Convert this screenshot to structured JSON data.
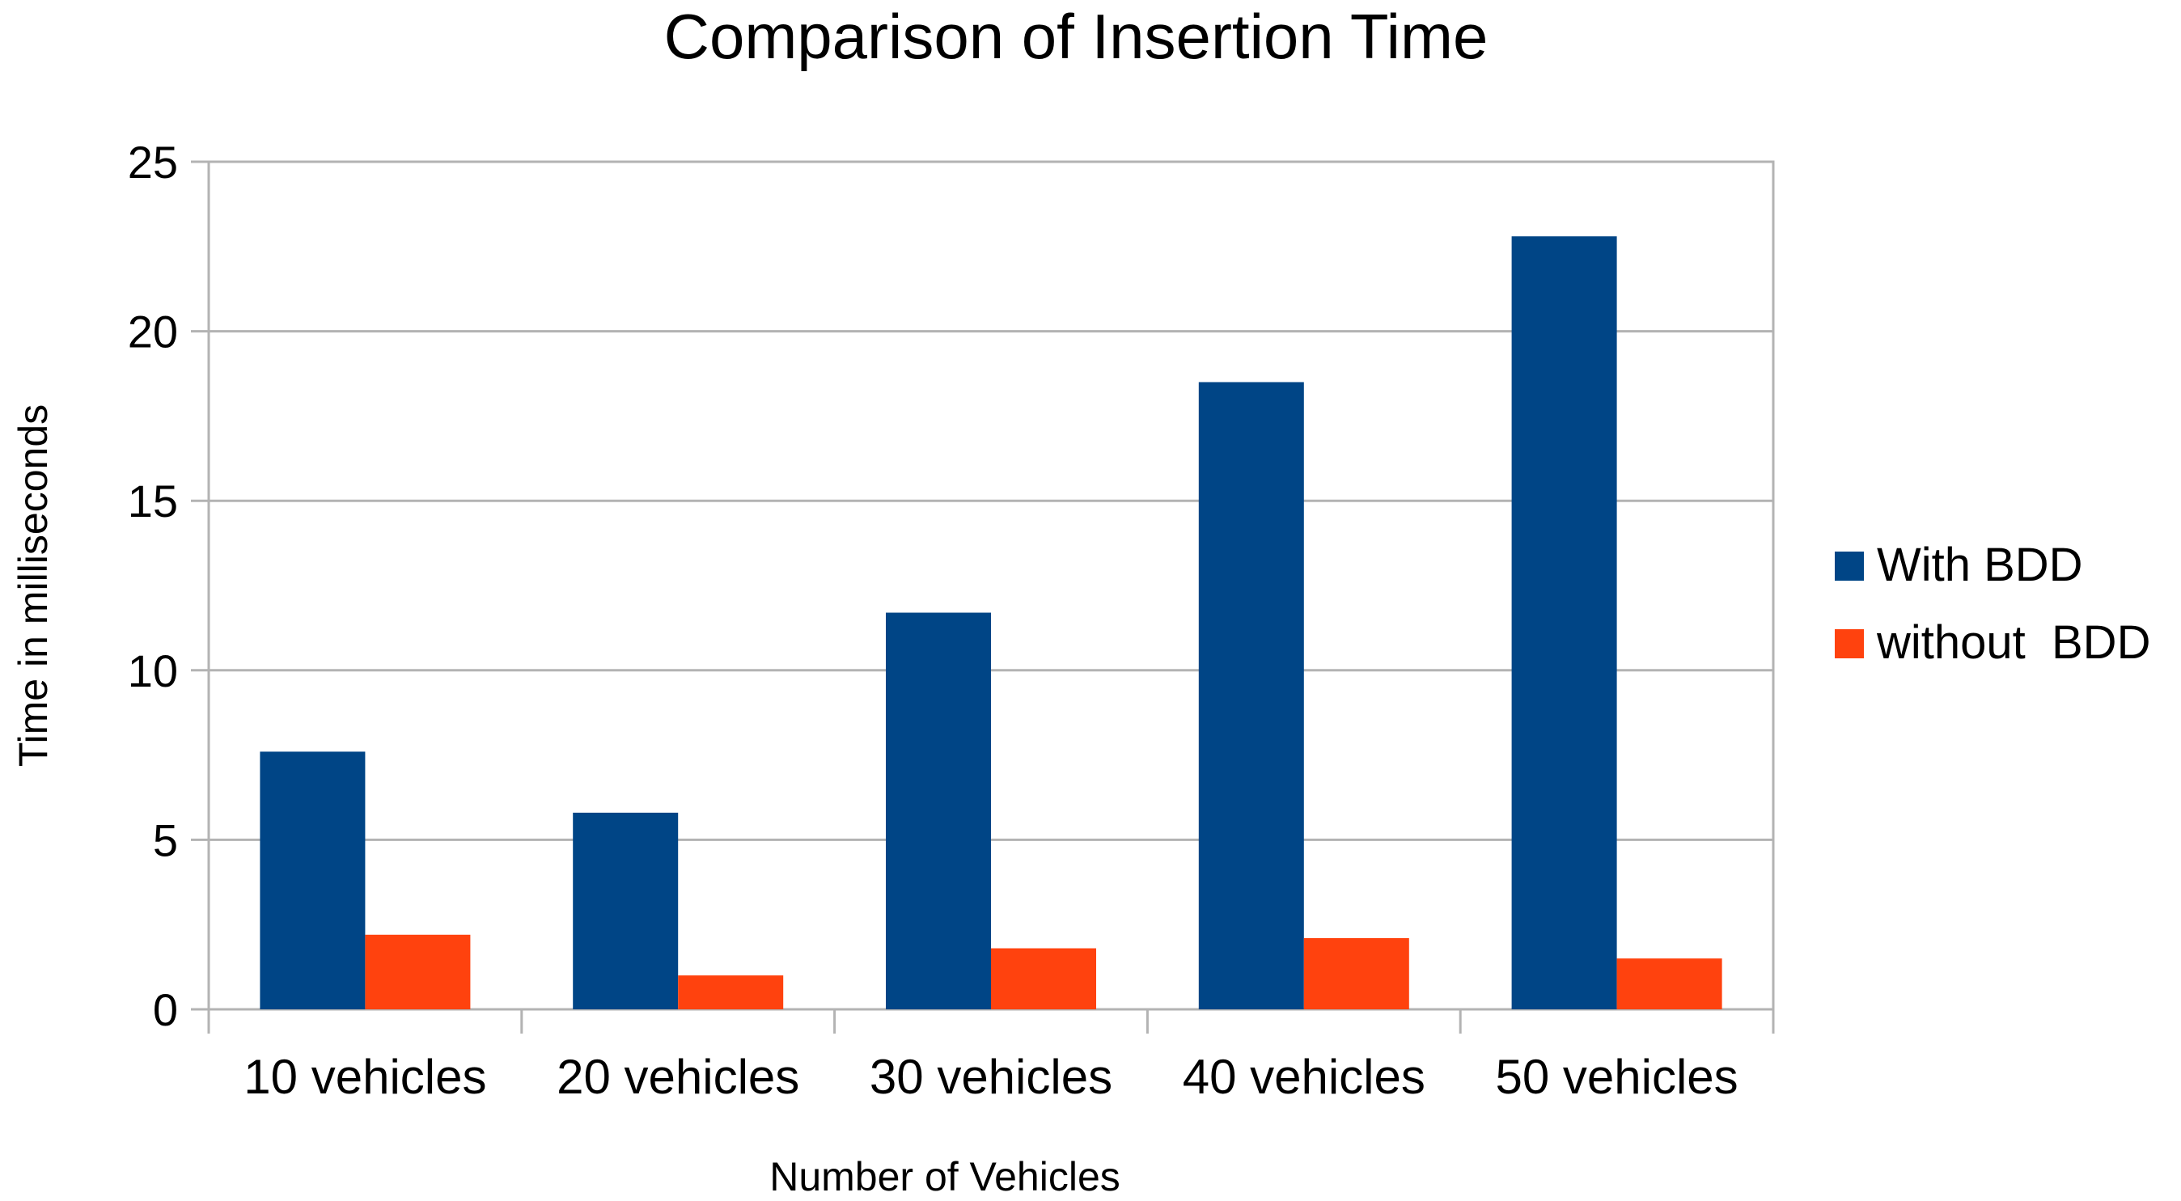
{
  "chart_data": {
    "type": "bar",
    "title": "Comparison of Insertion Time",
    "xlabel": "Number of Vehicles",
    "ylabel": "Time in milliseconds",
    "categories": [
      "10 vehicles",
      "20 vehicles",
      "30 vehicles",
      "40 vehicles",
      "50 vehicles"
    ],
    "yticks": [
      "0",
      "5",
      "10",
      "15",
      "20",
      "25"
    ],
    "ylim": [
      0,
      25
    ],
    "grid": true,
    "legend_position": "right",
    "series": [
      {
        "name": "With BDD",
        "color": "#004586",
        "values": [
          7.6,
          5.8,
          11.7,
          18.5,
          22.8
        ]
      },
      {
        "name": "without  BDD",
        "color": "#ff420e",
        "values": [
          2.2,
          1.0,
          1.8,
          2.1,
          1.5
        ]
      }
    ]
  }
}
